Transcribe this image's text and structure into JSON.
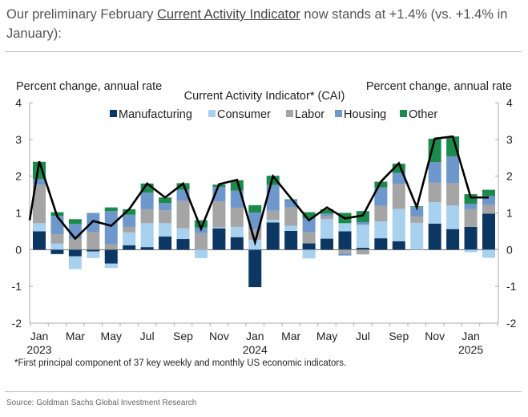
{
  "intro": {
    "before": "Our preliminary February ",
    "link": "Current Activity Indicator",
    "after": " now stands at +1.4% (vs. +1.4% in January):"
  },
  "footnote": "*First principal component of 37 key weekly and monthly US economic indicators.",
  "source": "Source: Goldman Sachs Global Investment Research",
  "chart_data": {
    "type": "bar",
    "stacked": true,
    "title": "Current Activity Indicator* (CAI)",
    "ylabel_left": "Percent change, annual rate",
    "ylabel_right": "Percent change, annual rate",
    "ylim": [
      -2,
      4
    ],
    "yticks": [
      "4",
      "3",
      "2",
      "1",
      "0",
      "-1",
      "-2"
    ],
    "legend_position": "top",
    "xtick_labels": [
      {
        "month": 0,
        "label": "Jan",
        "year": "2023"
      },
      {
        "month": 2,
        "label": "Mar"
      },
      {
        "month": 4,
        "label": "May"
      },
      {
        "month": 6,
        "label": "Jul"
      },
      {
        "month": 8,
        "label": "Sep"
      },
      {
        "month": 10,
        "label": "Nov"
      },
      {
        "month": 12,
        "label": "Jan",
        "year": "2024"
      },
      {
        "month": 14,
        "label": "Mar"
      },
      {
        "month": 16,
        "label": "May"
      },
      {
        "month": 18,
        "label": "Jul"
      },
      {
        "month": 20,
        "label": "Sep"
      },
      {
        "month": 22,
        "label": "Nov"
      },
      {
        "month": 24,
        "label": "Jan",
        "year": "2025"
      }
    ],
    "categories": [
      "Jan 2023",
      "Feb 2023",
      "Mar 2023",
      "Apr 2023",
      "May 2023",
      "Jun 2023",
      "Jul 2023",
      "Aug 2023",
      "Sep 2023",
      "Oct 2023",
      "Nov 2023",
      "Dec 2023",
      "Jan 2024",
      "Feb 2024",
      "Mar 2024",
      "Apr 2024",
      "May 2024",
      "Jun 2024",
      "Jul 2024",
      "Aug 2024",
      "Sep 2024",
      "Oct 2024",
      "Nov 2024",
      "Dec 2024",
      "Jan 2025",
      "Feb 2025"
    ],
    "series": [
      {
        "name": "Manufacturing",
        "color": "#0c3763",
        "values": [
          0.5,
          -0.12,
          -0.18,
          -0.05,
          -0.38,
          0.12,
          0.07,
          0.36,
          0.29,
          0,
          0.58,
          0.34,
          -1.02,
          0.74,
          0.51,
          0.17,
          0.3,
          0.5,
          0.05,
          0.31,
          0.23,
          0,
          0.71,
          0.56,
          0.62,
          0.98
        ]
      },
      {
        "name": "Consumer",
        "color": "#a8d0ef",
        "values": [
          0.22,
          0.17,
          -0.35,
          -0.18,
          -0.12,
          0.35,
          0.65,
          0.36,
          0.29,
          -0.23,
          0.03,
          0.28,
          0.27,
          0.07,
          0.14,
          -0.24,
          0.53,
          0.22,
          0.63,
          0.46,
          0.88,
          0.73,
          0.58,
          0.64,
          -0.07,
          -0.22
        ]
      },
      {
        "name": "Labor",
        "color": "#a5a5a5",
        "values": [
          1.05,
          0.25,
          0.3,
          0.48,
          0.15,
          0.15,
          0.38,
          0.35,
          0.75,
          0.45,
          0.7,
          0.52,
          0.28,
          0.25,
          0.5,
          0.3,
          0.08,
          -0.1,
          -0.13,
          0.42,
          0.68,
          0.17,
          0.53,
          0.61,
          0.48,
          0.24
        ]
      },
      {
        "name": "Housing",
        "color": "#6e97cc",
        "values": [
          0.15,
          0.5,
          0.4,
          0.52,
          0.9,
          0.33,
          0.45,
          0.2,
          0.3,
          0.15,
          0.4,
          0.47,
          0.46,
          0.7,
          0.2,
          0.38,
          0.07,
          -0.06,
          0.07,
          0.5,
          0.3,
          0.26,
          0.56,
          0.73,
          0.15,
          0.24
        ]
      },
      {
        "name": "Other",
        "color": "#1b8a4c",
        "values": [
          0.47,
          0.1,
          0.13,
          0,
          0.1,
          0.15,
          0.25,
          0.15,
          0.18,
          0.2,
          0.06,
          0.28,
          0.2,
          0.25,
          0.02,
          0.17,
          0.12,
          0.28,
          0.3,
          0.16,
          0.25,
          0.02,
          0.64,
          0.54,
          0.26,
          0.17
        ]
      }
    ],
    "line": {
      "name": "CAI",
      "color": "#000000",
      "start_value": 0.8,
      "values": [
        2.4,
        0.9,
        0.3,
        0.78,
        0.65,
        1.1,
        1.8,
        1.42,
        1.8,
        0.57,
        1.78,
        1.9,
        0.2,
        2.0,
        1.4,
        0.8,
        1.15,
        0.85,
        0.93,
        1.85,
        2.35,
        1.15,
        3.02,
        3.08,
        1.42,
        1.42
      ]
    }
  }
}
